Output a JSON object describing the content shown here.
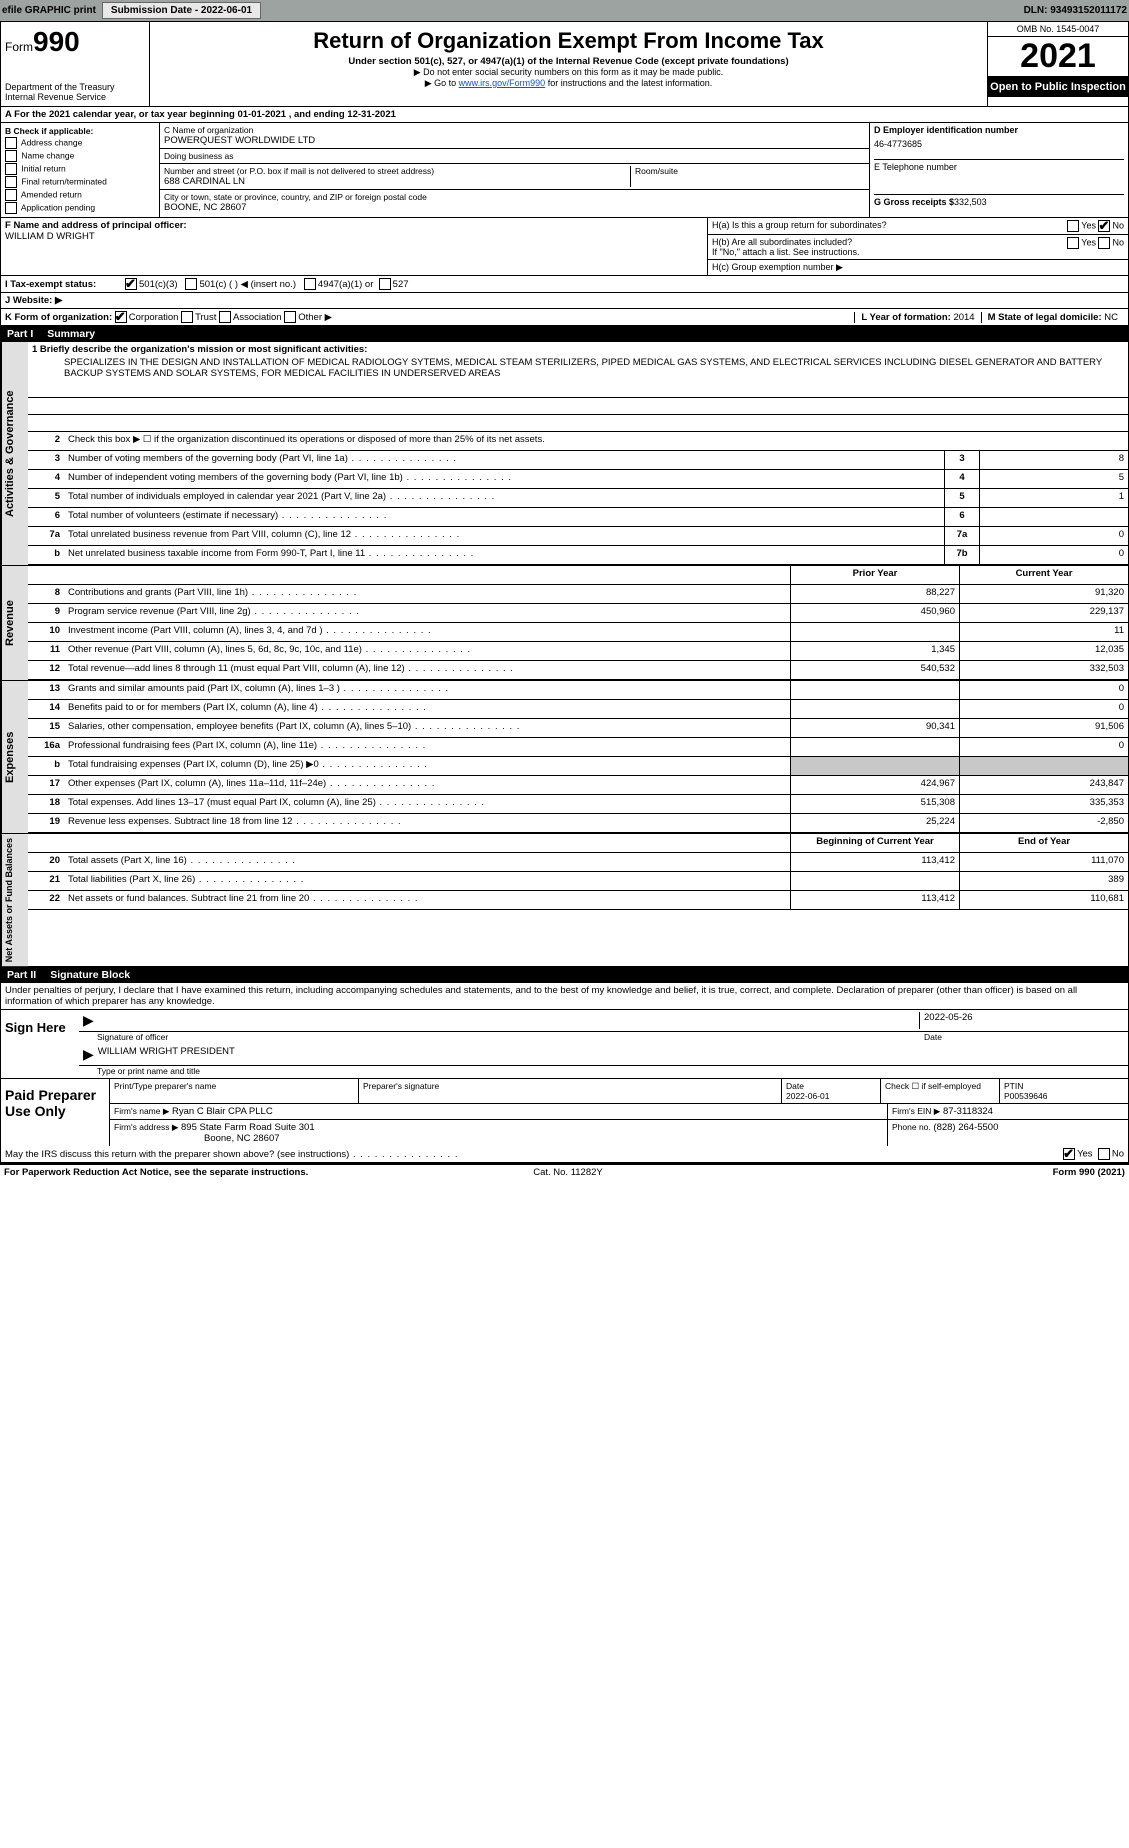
{
  "topbar": {
    "efile": "efile GRAPHIC print",
    "submission_label": "Submission Date - 2022-06-01",
    "dln": "DLN: 93493152011172"
  },
  "header": {
    "form_label": "Form",
    "form_no": "990",
    "dept": "Department of the Treasury",
    "irs": "Internal Revenue Service",
    "title": "Return of Organization Exempt From Income Tax",
    "sub": "Under section 501(c), 527, or 4947(a)(1) of the Internal Revenue Code (except private foundations)",
    "note1": "▶ Do not enter social security numbers on this form as it may be made public.",
    "note2": "▶ Go to www.irs.gov/Form990 for instructions and the latest information.",
    "link": "www.irs.gov/Form990",
    "omb": "OMB No. 1545-0047",
    "year": "2021",
    "otp": "Open to Public Inspection"
  },
  "A": {
    "text": "A For the 2021 calendar year, or tax year beginning 01-01-2021    , and ending 12-31-2021"
  },
  "B": {
    "label": "B Check if applicable:",
    "items": [
      "Address change",
      "Name change",
      "Initial return",
      "Final return/terminated",
      "Amended return",
      "Application pending"
    ]
  },
  "C": {
    "name_label": "C Name of organization",
    "name": "POWERQUEST WORLDWIDE LTD",
    "dba_label": "Doing business as",
    "dba": "",
    "addr_label": "Number and street (or P.O. box if mail is not delivered to street address)",
    "room_label": "Room/suite",
    "addr": "688 CARDINAL LN",
    "city_label": "City or town, state or province, country, and ZIP or foreign postal code",
    "city": "BOONE, NC  28607"
  },
  "D": {
    "label": "D Employer identification number",
    "value": "46-4773685"
  },
  "E": {
    "label": "E Telephone number",
    "value": ""
  },
  "F": {
    "label": "F  Name and address of principal officer:",
    "value": "WILLIAM D WRIGHT"
  },
  "G": {
    "label": "G Gross receipts $",
    "value": "332,503"
  },
  "H": {
    "a": "H(a)  Is this a group return for subordinates?",
    "b": "H(b)  Are all subordinates included?",
    "b_note": "If \"No,\" attach a list. See instructions.",
    "c": "H(c)  Group exemption number ▶",
    "yes": "Yes",
    "no": "No"
  },
  "I": {
    "label": "I    Tax-exempt status:",
    "opts": [
      "501(c)(3)",
      "501(c) (  ) ◀ (insert no.)",
      "4947(a)(1) or",
      "527"
    ]
  },
  "J": {
    "label": "J    Website: ▶",
    "value": ""
  },
  "K": {
    "label": "K Form of organization:",
    "opts": [
      "Corporation",
      "Trust",
      "Association",
      "Other ▶"
    ]
  },
  "L": {
    "label": "L Year of formation:",
    "value": "2014"
  },
  "M": {
    "label": "M State of legal domicile:",
    "value": "NC"
  },
  "partI": {
    "title": "Part I",
    "subtitle": "Summary",
    "q1_label": "1  Briefly describe the organization's mission or most significant activities:",
    "q1_text": "SPECIALIZES IN THE DESIGN AND INSTALLATION OF MEDICAL RADIOLOGY SYTEMS, MEDICAL STEAM STERILIZERS, PIPED MEDICAL GAS SYSTEMS, AND ELECTRICAL SERVICES INCLUDING DIESEL GENERATOR AND BATTERY BACKUP SYSTEMS AND SOLAR SYSTEMS, FOR MEDICAL FACILITIES IN UNDERSERVED AREAS",
    "q2": "Check this box ▶ ☐ if the organization discontinued its operations or disposed of more than 25% of its net assets.",
    "rows_ag": [
      {
        "n": "3",
        "t": "Number of voting members of the governing body (Part VI, line 1a)",
        "box": "3",
        "v": "8"
      },
      {
        "n": "4",
        "t": "Number of independent voting members of the governing body (Part VI, line 1b)",
        "box": "4",
        "v": "5"
      },
      {
        "n": "5",
        "t": "Total number of individuals employed in calendar year 2021 (Part V, line 2a)",
        "box": "5",
        "v": "1"
      },
      {
        "n": "6",
        "t": "Total number of volunteers (estimate if necessary)",
        "box": "6",
        "v": ""
      },
      {
        "n": "7a",
        "t": "Total unrelated business revenue from Part VIII, column (C), line 12",
        "box": "7a",
        "v": "0"
      },
      {
        "n": "b",
        "t": "Net unrelated business taxable income from Form 990-T, Part I, line 11",
        "box": "7b",
        "v": "0"
      }
    ],
    "colhdr_prior": "Prior Year",
    "colhdr_curr": "Current Year",
    "rev": [
      {
        "n": "8",
        "t": "Contributions and grants (Part VIII, line 1h)",
        "p": "88,227",
        "c": "91,320"
      },
      {
        "n": "9",
        "t": "Program service revenue (Part VIII, line 2g)",
        "p": "450,960",
        "c": "229,137"
      },
      {
        "n": "10",
        "t": "Investment income (Part VIII, column (A), lines 3, 4, and 7d )",
        "p": "",
        "c": "11"
      },
      {
        "n": "11",
        "t": "Other revenue (Part VIII, column (A), lines 5, 6d, 8c, 9c, 10c, and 11e)",
        "p": "1,345",
        "c": "12,035"
      },
      {
        "n": "12",
        "t": "Total revenue—add lines 8 through 11 (must equal Part VIII, column (A), line 12)",
        "p": "540,532",
        "c": "332,503"
      }
    ],
    "exp": [
      {
        "n": "13",
        "t": "Grants and similar amounts paid (Part IX, column (A), lines 1–3 )",
        "p": "",
        "c": "0"
      },
      {
        "n": "14",
        "t": "Benefits paid to or for members (Part IX, column (A), line 4)",
        "p": "",
        "c": "0"
      },
      {
        "n": "15",
        "t": "Salaries, other compensation, employee benefits (Part IX, column (A), lines 5–10)",
        "p": "90,341",
        "c": "91,506"
      },
      {
        "n": "16a",
        "t": "Professional fundraising fees (Part IX, column (A), line 11e)",
        "p": "",
        "c": "0"
      },
      {
        "n": "b",
        "t": "Total fundraising expenses (Part IX, column (D), line 25) ▶0",
        "p": "GREY",
        "c": "GREY"
      },
      {
        "n": "17",
        "t": "Other expenses (Part IX, column (A), lines 11a–11d, 11f–24e)",
        "p": "424,967",
        "c": "243,847"
      },
      {
        "n": "18",
        "t": "Total expenses. Add lines 13–17 (must equal Part IX, column (A), line 25)",
        "p": "515,308",
        "c": "335,353"
      },
      {
        "n": "19",
        "t": "Revenue less expenses. Subtract line 18 from line 12",
        "p": "25,224",
        "c": "-2,850"
      }
    ],
    "na_hdr_b": "Beginning of Current Year",
    "na_hdr_e": "End of Year",
    "na": [
      {
        "n": "20",
        "t": "Total assets (Part X, line 16)",
        "p": "113,412",
        "c": "111,070"
      },
      {
        "n": "21",
        "t": "Total liabilities (Part X, line 26)",
        "p": "",
        "c": "389"
      },
      {
        "n": "22",
        "t": "Net assets or fund balances. Subtract line 21 from line 20",
        "p": "113,412",
        "c": "110,681"
      }
    ],
    "side_ag": "Activities & Governance",
    "side_rev": "Revenue",
    "side_exp": "Expenses",
    "side_na": "Net Assets or Fund Balances"
  },
  "partII": {
    "title": "Part II",
    "subtitle": "Signature Block",
    "decl": "Under penalties of perjury, I declare that I have examined this return, including accompanying schedules and statements, and to the best of my knowledge and belief, it is true, correct, and complete. Declaration of preparer (other than officer) is based on all information of which preparer has any knowledge.",
    "sign_here": "Sign Here",
    "sig_officer": "Signature of officer",
    "date_lbl": "Date",
    "sig_date": "2022-05-26",
    "name_title": "WILLIAM WRIGHT  PRESIDENT",
    "name_title_lbl": "Type or print name and title",
    "paid": "Paid Preparer Use Only",
    "pp_name_lbl": "Print/Type preparer's name",
    "pp_sig_lbl": "Preparer's signature",
    "pp_date_lbl": "Date",
    "pp_date": "2022-06-01",
    "pp_self": "Check ☐ if self-employed",
    "ptin_lbl": "PTIN",
    "ptin": "P00539646",
    "firm_name_lbl": "Firm's name    ▶",
    "firm_name": "Ryan C Blair CPA PLLC",
    "firm_ein_lbl": "Firm's EIN ▶",
    "firm_ein": "87-3118324",
    "firm_addr_lbl": "Firm's address ▶",
    "firm_addr1": "895 State Farm Road Suite 301",
    "firm_addr2": "Boone, NC  28607",
    "phone_lbl": "Phone no.",
    "phone": "(828) 264-5500",
    "may": "May the IRS discuss this return with the preparer shown above? (see instructions)",
    "yes": "Yes",
    "no": "No"
  },
  "footer": {
    "pra": "For Paperwork Reduction Act Notice, see the separate instructions.",
    "cat": "Cat. No. 11282Y",
    "form": "Form 990 (2021)"
  },
  "colors": {
    "topbar": "#9ca3a0",
    "grey": "#c8c8c8",
    "sidegrey": "#e0e0e0",
    "link": "#0b57d0"
  }
}
